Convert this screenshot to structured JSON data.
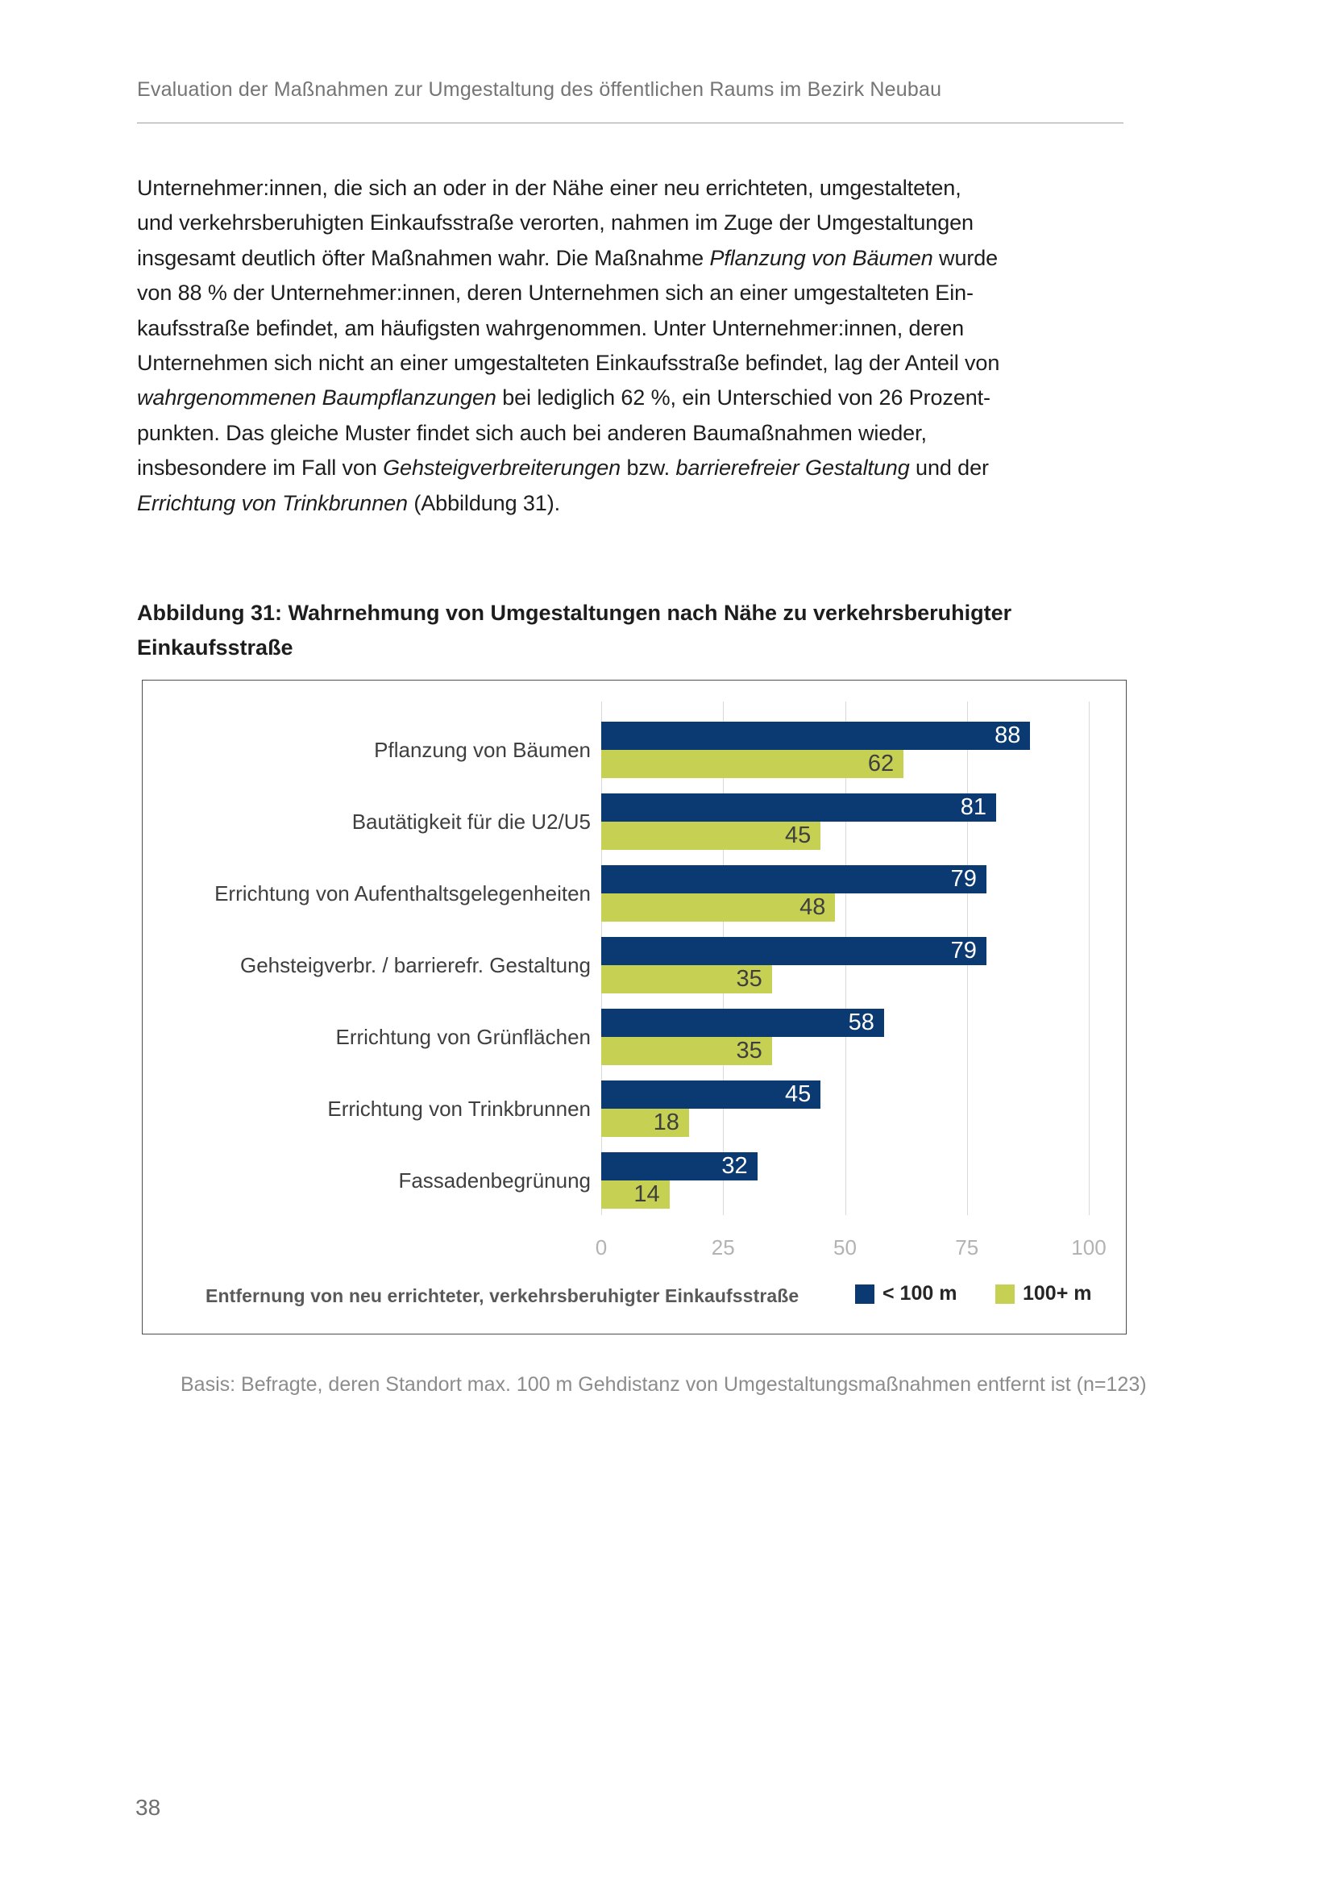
{
  "header": {
    "title": "Evaluation der Maßnahmen zur Umgestaltung des öffentlichen Raums im Bezirk Neubau"
  },
  "paragraph": {
    "lines": [
      [
        {
          "t": "Unternehmer:innen, die sich an oder in der Nähe einer neu errichteten, umgestalteten,",
          "i": false
        }
      ],
      [
        {
          "t": "und verkehrsberuhigten Einkaufsstraße verorten, nahmen im Zuge der Umgestaltungen",
          "i": false
        }
      ],
      [
        {
          "t": "insgesamt deutlich öfter Maßnahmen wahr. Die Maßnahme ",
          "i": false
        },
        {
          "t": "Pflanzung von Bäumen",
          "i": true
        },
        {
          "t": " wurde",
          "i": false
        }
      ],
      [
        {
          "t": "von 88 % der Unternehmer:innen, deren Unternehmen sich an einer umgestalteten Ein-",
          "i": false
        }
      ],
      [
        {
          "t": "kaufsstraße befindet, am häufigsten wahrgenommen. Unter Unternehmer:innen, deren",
          "i": false
        }
      ],
      [
        {
          "t": "Unternehmen sich nicht an einer umgestalteten Einkaufsstraße befindet, lag der Anteil von",
          "i": false
        }
      ],
      [
        {
          "t": "wahrgenommenen Baumpflanzungen",
          "i": true
        },
        {
          "t": " bei lediglich 62 %, ein Unterschied von 26 Prozent-",
          "i": false
        }
      ],
      [
        {
          "t": "punkten. Das gleiche Muster findet sich auch bei anderen Baumaßnahmen wieder,",
          "i": false
        }
      ],
      [
        {
          "t": "insbesondere im Fall von ",
          "i": false
        },
        {
          "t": "Gehsteigverbreiterungen",
          "i": true
        },
        {
          "t": " bzw. ",
          "i": false
        },
        {
          "t": "barrierefreier Gestaltung",
          "i": true
        },
        {
          "t": " und der",
          "i": false
        }
      ],
      [
        {
          "t": "Errichtung von Trinkbrunnen",
          "i": true
        },
        {
          "t": " (Abbildung 31).",
          "i": false
        }
      ]
    ]
  },
  "caption": {
    "line1": "Abbildung 31: Wahrnehmung von Umgestaltungen nach Nähe zu verkehrsberuhigter",
    "line2": "Einkaufsstraße"
  },
  "chart_data": {
    "type": "bar",
    "orientation": "horizontal",
    "categories": [
      "Pflanzung von Bäumen",
      "Bautätigkeit für die U2/U5",
      "Errichtung von Aufenthaltsgelegenheiten",
      "Gehsteigverbr. / barrierefr. Gestaltung",
      "Errichtung von Grünflächen",
      "Errichtung von Trinkbrunnen",
      "Fassadenbegrünung"
    ],
    "series": [
      {
        "name": "< 100 m",
        "color": "#0b3a72",
        "value_label_color": "#ffffff",
        "values": [
          88,
          81,
          79,
          79,
          58,
          45,
          32
        ]
      },
      {
        "name": "100+ m",
        "color": "#c6d154",
        "value_label_color": "#3f3f3f",
        "values": [
          62,
          45,
          48,
          35,
          35,
          18,
          14
        ]
      }
    ],
    "xlim": [
      0,
      100
    ],
    "xticks": [
      0,
      25,
      50,
      75,
      100
    ],
    "grid": "vertical",
    "gridline_color": "#d9d9d9",
    "axis_label": "Entfernung von neu errichteter, verkehrsberuhigter Einkaufsstraße",
    "legend_position": "bottom-right"
  },
  "basis_note": "Basis: Befragte, deren Standort max. 100 m Gehdistanz von Umgestaltungsmaßnahmen entfernt ist (n=123)",
  "page": {
    "number": "38"
  }
}
